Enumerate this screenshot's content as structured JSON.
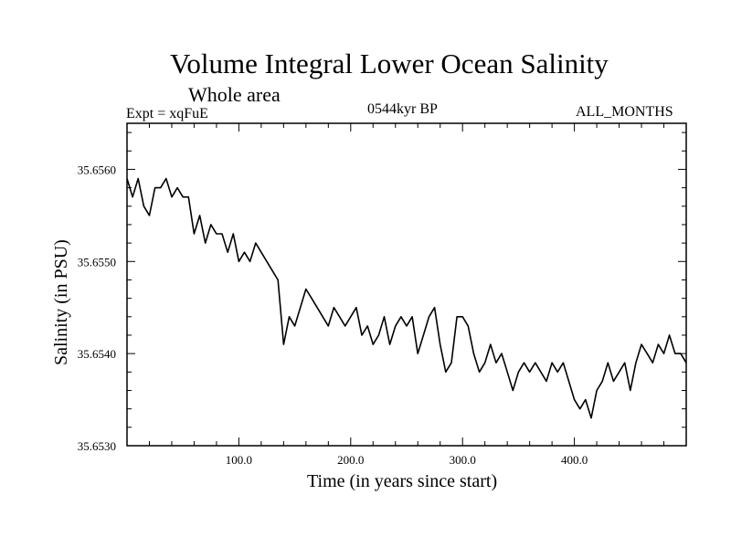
{
  "chart_data": {
    "type": "line",
    "title": "Volume Integral Lower Ocean Salinity",
    "subtitle": "Whole area",
    "experiment_label": "Expt = xqFuE",
    "period_label": "0544kyr BP",
    "months_label": "ALL_MONTHS",
    "xlabel": "Time (in years since start)",
    "ylabel": "Salinity (in PSU)",
    "xlim": [
      0,
      500
    ],
    "ylim": [
      35.653,
      35.6565
    ],
    "x_ticks": [
      100,
      200,
      300,
      400
    ],
    "x_tick_labels": [
      "100.0",
      "200.0",
      "300.0",
      "400.0"
    ],
    "y_ticks": [
      35.653,
      35.654,
      35.655,
      35.656
    ],
    "y_tick_labels": [
      "35.6530",
      "35.6540",
      "35.6550",
      "35.6560"
    ],
    "grid": false,
    "series": [
      {
        "name": "Salinity",
        "color": "#000000",
        "x": [
          0,
          5,
          10,
          15,
          20,
          25,
          30,
          35,
          40,
          45,
          50,
          55,
          60,
          65,
          70,
          75,
          80,
          85,
          90,
          95,
          100,
          105,
          110,
          115,
          120,
          125,
          130,
          135,
          140,
          145,
          150,
          155,
          160,
          165,
          170,
          175,
          180,
          185,
          190,
          195,
          200,
          205,
          210,
          215,
          220,
          225,
          230,
          235,
          240,
          245,
          250,
          255,
          260,
          265,
          270,
          275,
          280,
          285,
          290,
          295,
          300,
          305,
          310,
          315,
          320,
          325,
          330,
          335,
          340,
          345,
          350,
          355,
          360,
          365,
          370,
          375,
          380,
          385,
          390,
          395,
          400,
          405,
          410,
          415,
          420,
          425,
          430,
          435,
          440,
          445,
          450,
          455,
          460,
          465,
          470,
          475,
          480,
          485,
          490,
          495,
          500
        ],
        "values": [
          35.6559,
          35.6557,
          35.6559,
          35.6556,
          35.6555,
          35.6558,
          35.6558,
          35.6559,
          35.6557,
          35.6558,
          35.6557,
          35.6557,
          35.6553,
          35.6555,
          35.6552,
          35.6554,
          35.6553,
          35.6553,
          35.6551,
          35.6553,
          35.655,
          35.6551,
          35.655,
          35.6552,
          35.6551,
          35.655,
          35.6549,
          35.6548,
          35.6541,
          35.6544,
          35.6543,
          35.6545,
          35.6547,
          35.6546,
          35.6545,
          35.6544,
          35.6543,
          35.6545,
          35.6544,
          35.6543,
          35.6544,
          35.6545,
          35.6542,
          35.6543,
          35.6541,
          35.6542,
          35.6544,
          35.6541,
          35.6543,
          35.6544,
          35.6543,
          35.6544,
          35.654,
          35.6542,
          35.6544,
          35.6545,
          35.6541,
          35.6538,
          35.6539,
          35.6544,
          35.6544,
          35.6543,
          35.654,
          35.6538,
          35.6539,
          35.6541,
          35.6539,
          35.654,
          35.6538,
          35.6536,
          35.6538,
          35.6539,
          35.6538,
          35.6539,
          35.6538,
          35.6537,
          35.6539,
          35.6538,
          35.6539,
          35.6537,
          35.6535,
          35.6534,
          35.6535,
          35.6533,
          35.6536,
          35.6537,
          35.6539,
          35.6537,
          35.6538,
          35.6539,
          35.6536,
          35.6539,
          35.6541,
          35.654,
          35.6539,
          35.6541,
          35.654,
          35.6542,
          35.654,
          35.654,
          35.6539
        ]
      }
    ]
  }
}
